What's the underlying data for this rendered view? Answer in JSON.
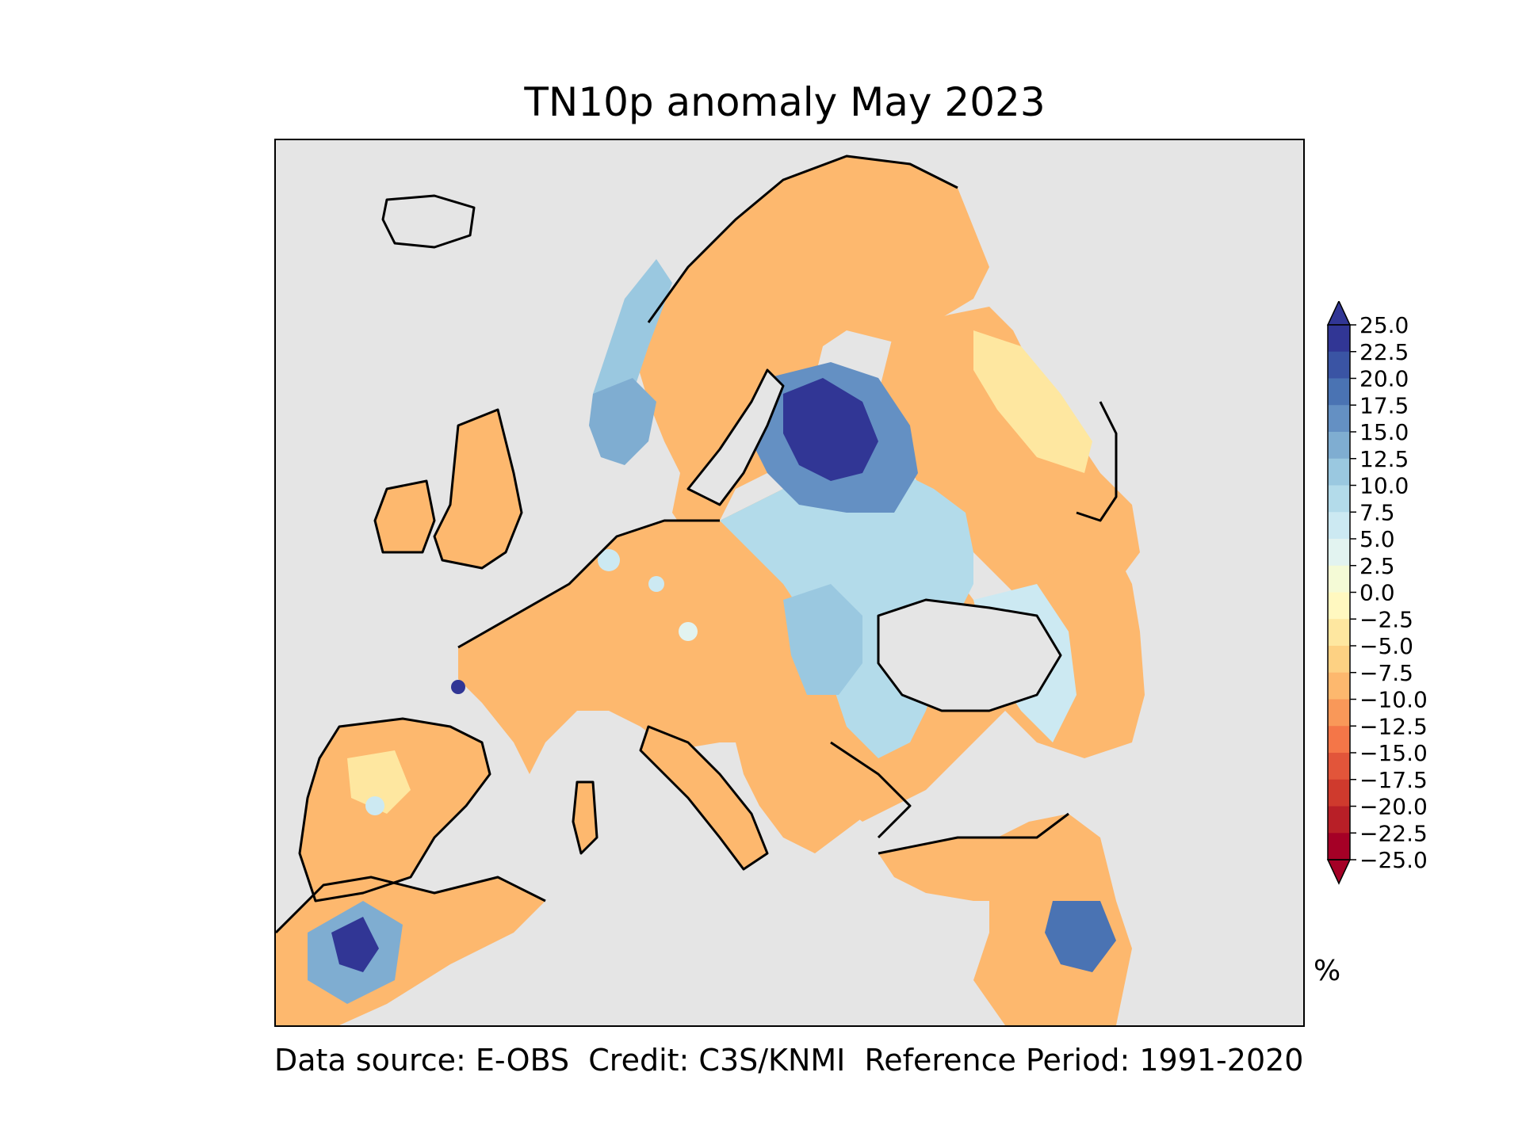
{
  "title": "TN10p anomaly May 2023",
  "footer": "Data source: E-OBS  Credit: C3S/KNMI  Reference Period: 1991-2020",
  "colorbar": {
    "unit": "%",
    "ticks": [
      "25.0",
      "22.5",
      "20.0",
      "17.5",
      "15.0",
      "12.5",
      "10.0",
      "7.5",
      "5.0",
      "2.5",
      "0.0",
      "−2.5",
      "−5.0",
      "−7.5",
      "−10.0",
      "−12.5",
      "−15.0",
      "−17.5",
      "−20.0",
      "−22.5",
      "−25.0"
    ],
    "colors": [
      "#313695",
      "#3a54a4",
      "#4a73b3",
      "#6490c3",
      "#7fadd1",
      "#9ac8e0",
      "#b3dbea",
      "#cce9f2",
      "#e2f3f0",
      "#f4fad6",
      "#fff8c0",
      "#fee7a0",
      "#fdd183",
      "#fdb86e",
      "#f99859",
      "#f47648",
      "#e2553a",
      "#cf3a2d",
      "#b81f27",
      "#a50026"
    ],
    "extend_max_color": "#313695",
    "extend_min_color": "#a50026"
  },
  "map": {
    "background": "#e5e5e5",
    "regions": [
      {
        "name": "iberia",
        "anomaly": -7.5
      },
      {
        "name": "france-central-europe",
        "anomaly": -7.5
      },
      {
        "name": "british-isles",
        "anomaly": -7.5
      },
      {
        "name": "scandinavia-north",
        "anomaly": -7.5
      },
      {
        "name": "norway-west",
        "anomaly": 12.5
      },
      {
        "name": "baltic-belarus",
        "anomaly": 22.5
      },
      {
        "name": "ukraine",
        "anomaly": 10.0
      },
      {
        "name": "russia-west",
        "anomaly": -5.0
      },
      {
        "name": "balkans",
        "anomaly": -7.5
      },
      {
        "name": "italy",
        "anomaly": -7.5
      },
      {
        "name": "turkey",
        "anomaly": -7.5
      },
      {
        "name": "north-africa-west",
        "anomaly": 12.5
      },
      {
        "name": "middle-east",
        "anomaly": 15.0
      },
      {
        "name": "caucasus",
        "anomaly": 5.0
      }
    ]
  }
}
